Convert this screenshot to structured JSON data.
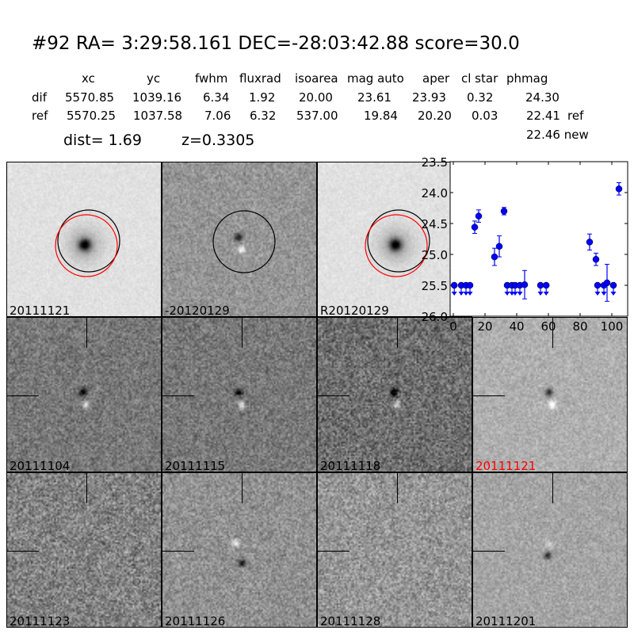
{
  "header": {
    "title": "#92   RA= 3:29:58.161 DEC=-28:03:42.88       score=30.0",
    "columns": [
      "xc",
      "yc",
      "fwhm",
      "fluxrad",
      "isoarea",
      "mag auto",
      "aper",
      "cl star",
      "phmag"
    ],
    "rows": [
      {
        "label": "dif",
        "values": [
          "5570.85",
          "1039.16",
          "6.34",
          "1.92",
          "20.00",
          "23.61",
          "23.93",
          "0.32",
          "24.30"
        ],
        "suffix": ""
      },
      {
        "label": "ref",
        "values": [
          "5570.25",
          "1037.58",
          "7.06",
          "6.32",
          "537.00",
          "19.84",
          "20.20",
          "0.03",
          "22.41"
        ],
        "suffix": "ref"
      }
    ],
    "dist": "dist=  1.69",
    "z": "z=0.3305",
    "new_mag": "22.46 new"
  },
  "stamps": {
    "top": [
      "20111121",
      "-20120129",
      "R20120129"
    ],
    "grid": [
      {
        "label": "20111104",
        "color": "#000000"
      },
      {
        "label": "20111115",
        "color": "#000000"
      },
      {
        "label": "20111118",
        "color": "#000000"
      },
      {
        "label": "20111121",
        "color": "#ff0000"
      },
      {
        "label": "20111123",
        "color": "#000000"
      },
      {
        "label": "20111126",
        "color": "#000000"
      },
      {
        "label": "20111128",
        "color": "#000000"
      },
      {
        "label": "20111201",
        "color": "#000000"
      }
    ]
  },
  "chart_data": {
    "type": "scatter",
    "xlim": [
      -2,
      110
    ],
    "ylim": [
      26.0,
      23.5
    ],
    "y_inverted": true,
    "xticks": [
      "0",
      "20",
      "40",
      "60",
      "80",
      "100"
    ],
    "yticks": [
      "23.5",
      "24.0",
      "24.5",
      "25.0",
      "25.5",
      "26.0"
    ],
    "color": "#0000ff",
    "detections": [
      {
        "x": 13.5,
        "y": 24.56,
        "err": 0.1
      },
      {
        "x": 16,
        "y": 24.38,
        "err": 0.1
      },
      {
        "x": 26,
        "y": 25.04,
        "err": 0.14
      },
      {
        "x": 29,
        "y": 24.87,
        "err": 0.17
      },
      {
        "x": 32,
        "y": 24.3,
        "err": 0.06
      },
      {
        "x": 45,
        "y": 25.49,
        "err": 0.23
      },
      {
        "x": 86,
        "y": 24.8,
        "err": 0.13
      },
      {
        "x": 90,
        "y": 25.08,
        "err": 0.1
      },
      {
        "x": 97,
        "y": 25.46,
        "err": 0.3
      },
      {
        "x": 104.5,
        "y": 23.94,
        "err": 0.1
      }
    ],
    "upper_limits": [
      {
        "x": 0.6,
        "y": 25.5
      },
      {
        "x": 5,
        "y": 25.5
      },
      {
        "x": 8,
        "y": 25.5
      },
      {
        "x": 10.5,
        "y": 25.5
      },
      {
        "x": 34,
        "y": 25.5
      },
      {
        "x": 37,
        "y": 25.5
      },
      {
        "x": 39,
        "y": 25.5
      },
      {
        "x": 42,
        "y": 25.5
      },
      {
        "x": 55,
        "y": 25.5
      },
      {
        "x": 58.6,
        "y": 25.5
      },
      {
        "x": 91,
        "y": 25.5
      },
      {
        "x": 95,
        "y": 25.5
      },
      {
        "x": 101,
        "y": 25.5
      }
    ]
  }
}
